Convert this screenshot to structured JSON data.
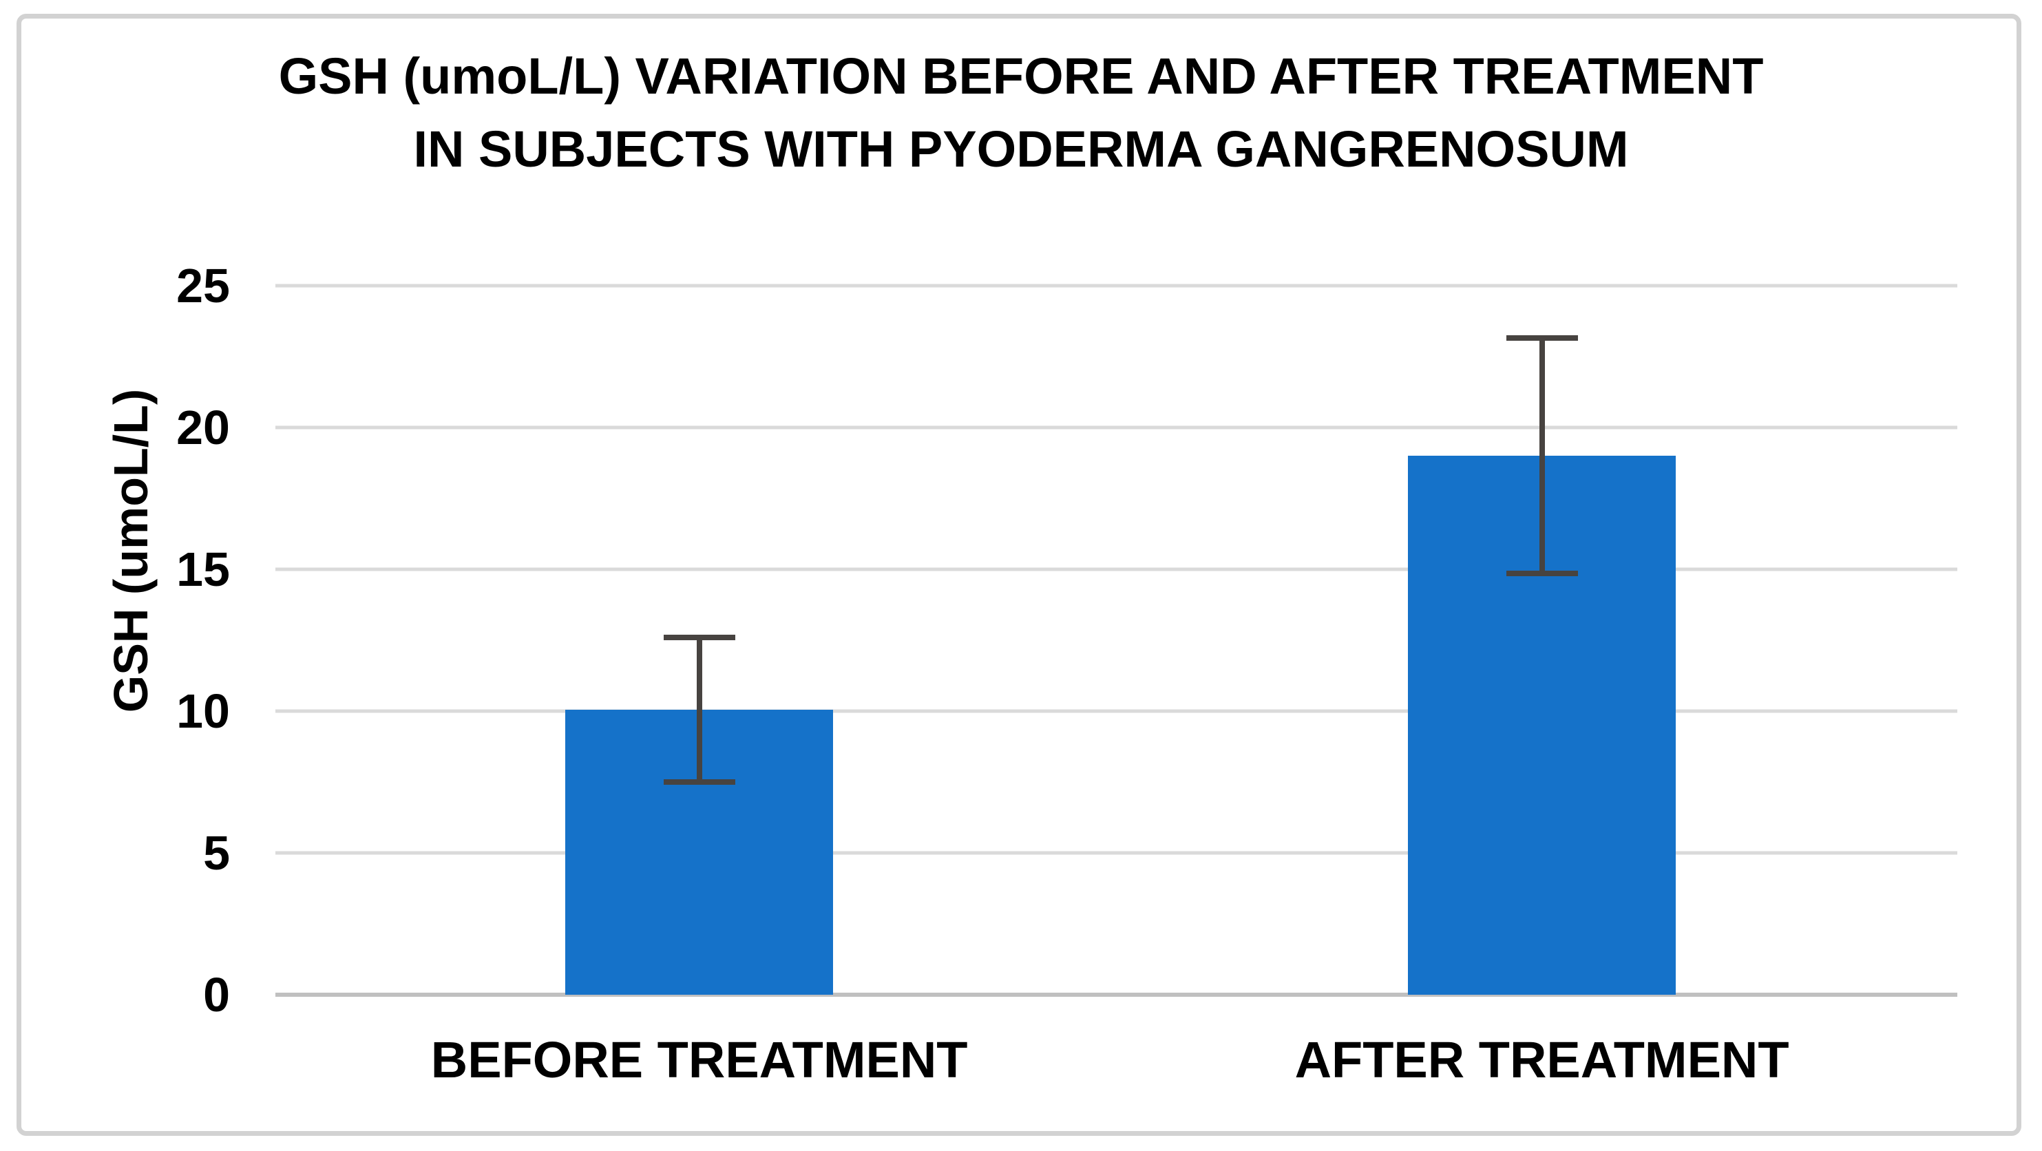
{
  "chart_data": {
    "type": "bar",
    "title": "GSH (umoL/L) VARIATION BEFORE AND AFTER TREATMENT IN SUBJECTS WITH PYODERMA GANGRENOSUM",
    "title_lines": [
      "GSH (umoL/L) VARIATION BEFORE AND AFTER TREATMENT",
      "IN SUBJECTS WITH PYODERMA GANGRENOSUM"
    ],
    "categories": [
      "BEFORE TREATMENT",
      "AFTER TREATMENT"
    ],
    "values": [
      10.05,
      19.0
    ],
    "error_bars": [
      2.55,
      4.15
    ],
    "error_whiskers": [
      {
        "low": 7.5,
        "high": 12.6
      },
      {
        "low": 14.85,
        "high": 23.15
      }
    ],
    "xlabel": "",
    "ylabel": "GSH (umoL/L)",
    "ylim": [
      0,
      25
    ],
    "yticks": [
      0,
      5,
      10,
      15,
      20,
      25
    ],
    "grid": true,
    "legend": "none",
    "colors": {
      "bar": "#1572C9",
      "error_bar": "#474340",
      "gridline": "#DADADA",
      "axis_line": "#C0C0C0",
      "text": "#000000",
      "frame_border": "#D2D2D2",
      "background": "#FFFFFF"
    },
    "layout": {
      "bar_centers_pct": [
        25.2,
        75.3
      ],
      "bar_width_pct": 15.9,
      "legend_position": "none"
    }
  }
}
